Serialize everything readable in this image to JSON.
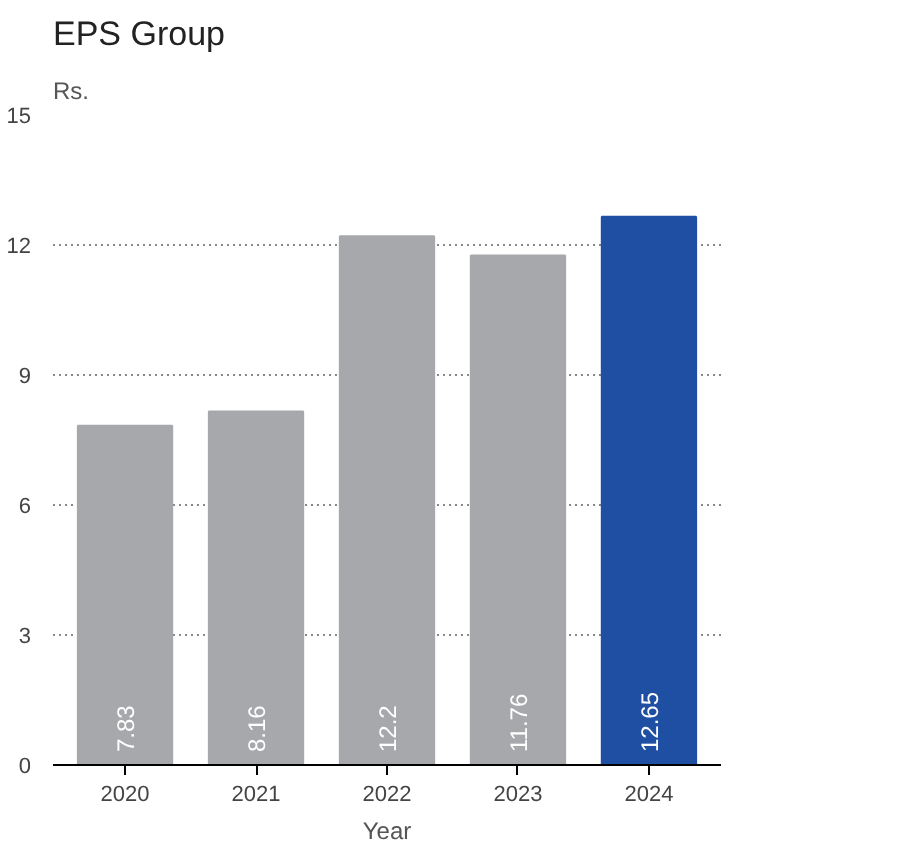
{
  "chart_data": {
    "type": "bar",
    "title": "EPS Group",
    "ylabel": "Rs.",
    "xlabel": "Year",
    "categories": [
      "2020",
      "2021",
      "2022",
      "2023",
      "2024"
    ],
    "values": [
      7.83,
      8.16,
      12.2,
      11.76,
      12.65
    ],
    "colors": [
      "#a7a8ab",
      "#a7a8ab",
      "#a7a8ab",
      "#a7a8ab",
      "#1f4fa3"
    ],
    "ylim": [
      0,
      15
    ],
    "yticks": [
      0,
      3,
      6,
      9,
      12,
      15
    ],
    "grid": "y",
    "data_labels": true
  }
}
